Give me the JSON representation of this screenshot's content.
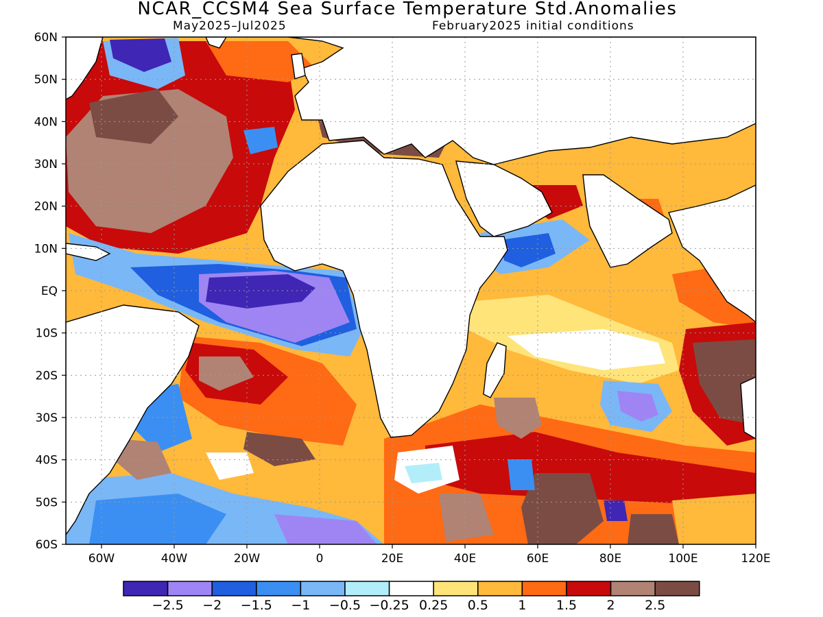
{
  "title": "NCAR_CCSM4 Sea Surface Temperature Std.Anomalies",
  "subtitle_left": "May2025–Jul2025",
  "subtitle_right": "February2025 initial conditions",
  "lat_labels": [
    "60N",
    "50N",
    "40N",
    "30N",
    "20N",
    "10N",
    "EQ",
    "10S",
    "20S",
    "30S",
    "40S",
    "50S",
    "60S"
  ],
  "lon_labels": [
    "60W",
    "40W",
    "20W",
    "0",
    "20E",
    "40E",
    "60E",
    "80E",
    "100E",
    "120E"
  ],
  "colorbar": {
    "colors": [
      "#3f26b4",
      "#9f85f3",
      "#1f5fe0",
      "#3b8ff2",
      "#7ab7f7",
      "#b2eefa",
      "#ffffff",
      "#ffe47a",
      "#ffb93b",
      "#ff6a14",
      "#c80a0a",
      "#b08374",
      "#7b4c44"
    ],
    "tick_labels": [
      "−2.5",
      "−2",
      "−1.5",
      "−1",
      "−0.5",
      "−0.25",
      "0.25",
      "0.5",
      "1",
      "1.5",
      "2",
      "2.5"
    ]
  }
}
